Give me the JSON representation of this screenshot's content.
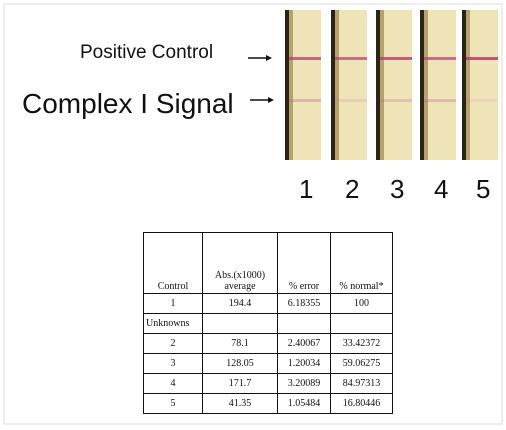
{
  "labels": {
    "positive_control": "Positive Control",
    "complex_signal": "Complex I Signal"
  },
  "lanes": [
    "1",
    "2",
    "3",
    "4",
    "5"
  ],
  "table": {
    "header": [
      "Control",
      "Abs.(x1000) average",
      "% error",
      "% normal*"
    ],
    "rows": [
      [
        "1",
        "194.4",
        "6.18355",
        "100"
      ],
      [
        "Unknowns"
      ],
      [
        "2",
        "78.1",
        "2.40067",
        "33.42372"
      ],
      [
        "3",
        "128.05",
        "1.20034",
        "59.06275"
      ],
      [
        "4",
        "171.7",
        "3.20089",
        "84.97313"
      ],
      [
        "5",
        "41.35",
        "1.05484",
        "16.80446"
      ]
    ]
  }
}
